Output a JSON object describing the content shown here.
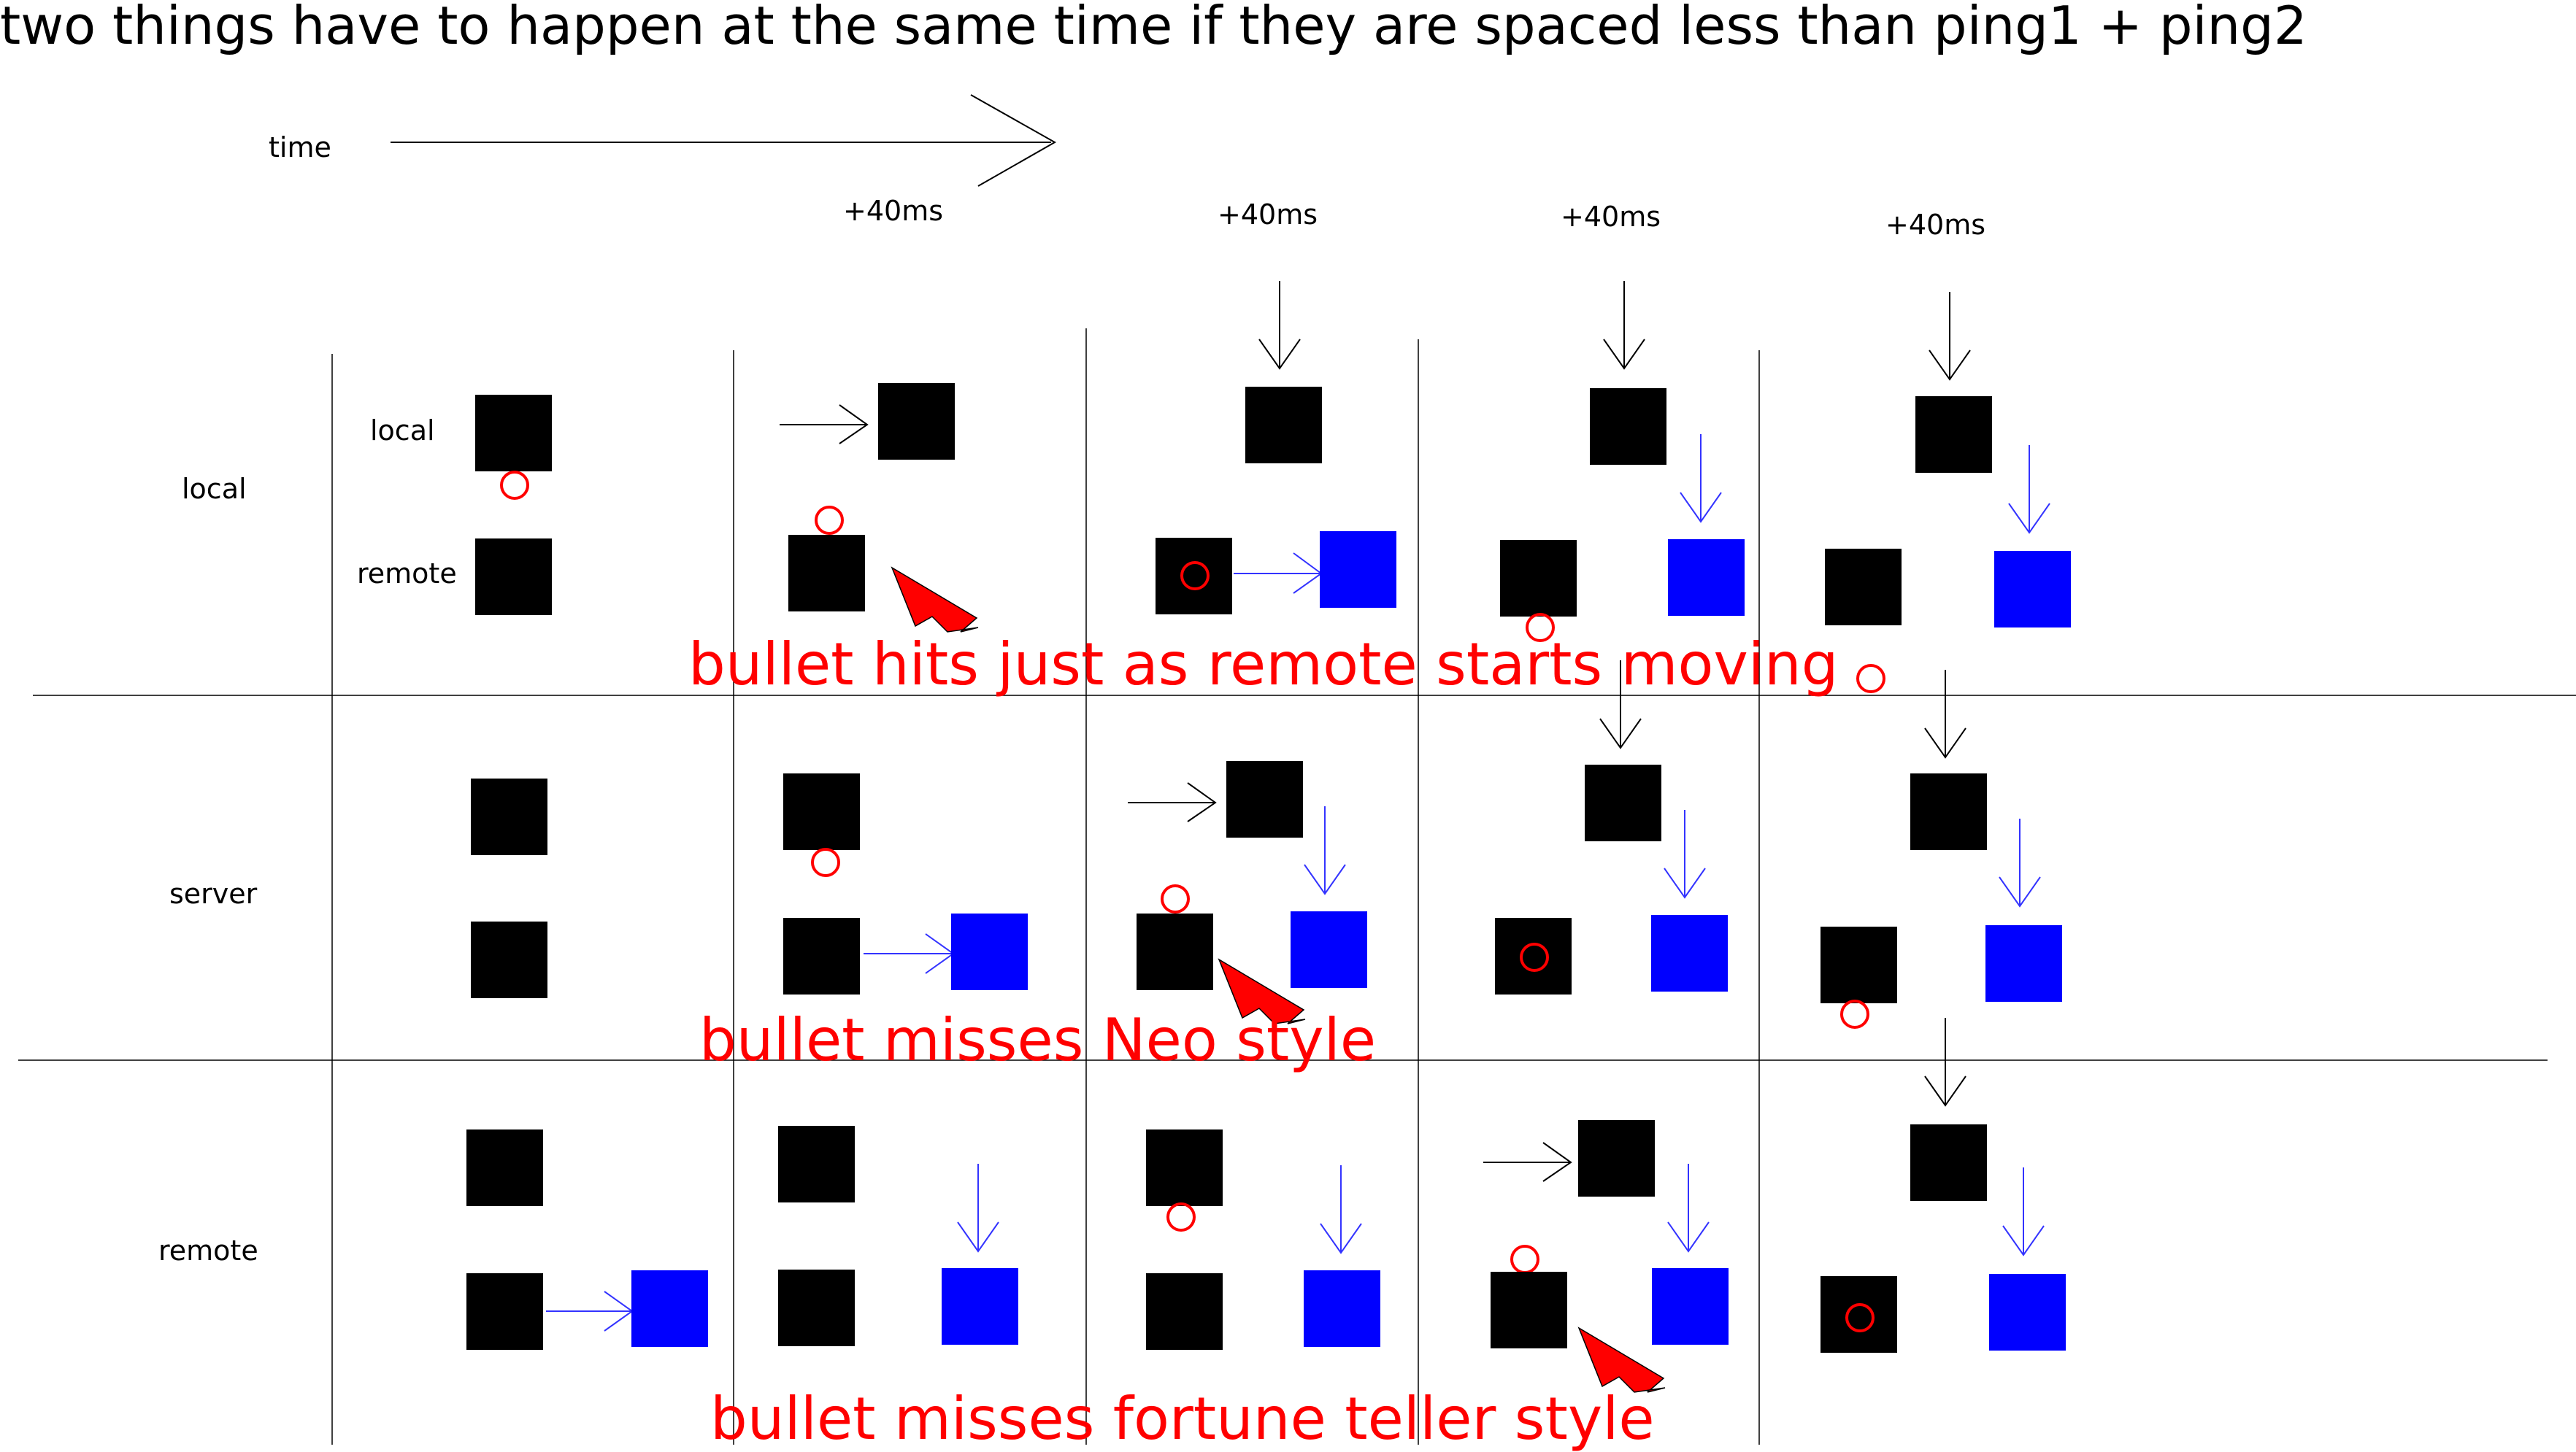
{
  "title": "two things have to happen at the same time if they are spaced less than ping1 + ping2",
  "time_label": "time",
  "step_labels": [
    "+40ms",
    "+40ms",
    "+40ms",
    "+40ms"
  ],
  "rows": [
    {
      "label": "local",
      "sublabels": [
        "local",
        "remote"
      ]
    },
    {
      "label": "server",
      "sublabels": []
    },
    {
      "label": "remote",
      "sublabels": []
    }
  ],
  "captions": [
    "bullet hits just as remote starts moving",
    "bullet misses Neo style",
    "bullet misses fortune teller style"
  ],
  "colors": {
    "entity": "#000000",
    "moved_entity": "#0000ff",
    "bullet": "#ff0000",
    "caption": "#ff0000",
    "pointer": "#ff0000"
  }
}
